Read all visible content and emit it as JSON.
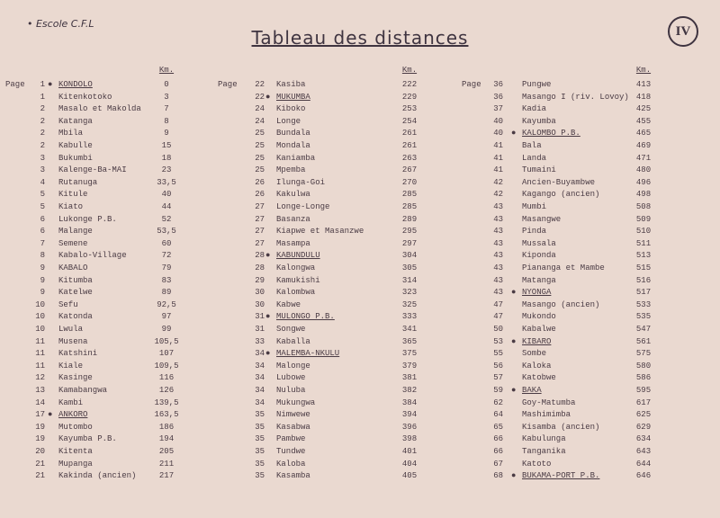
{
  "header": {
    "school": "• Escole C.F.L",
    "title": "Tableau des distances",
    "sheet": "IV"
  },
  "groups": [
    {
      "page_label": "Page",
      "km_label": "Km.",
      "rows": [
        [
          "1",
          "KONDOLO",
          "0",
          true
        ],
        [
          "1",
          "Kitenkotoko",
          "3"
        ],
        [
          "2",
          "Masalo et Makolda",
          "7"
        ],
        [
          "2",
          "Katanga",
          "8"
        ],
        [
          "2",
          "Mbila",
          "9"
        ],
        [
          "2",
          "Kabulle",
          "15"
        ],
        [
          "3",
          "Bukumbi",
          "18"
        ],
        [
          "3",
          "Kalenge-Ba-MAI",
          "23"
        ],
        [
          "4",
          "Rutanuga",
          "33,5"
        ],
        [
          "5",
          "Kitule",
          "40"
        ],
        [
          "5",
          "Kiato",
          "44"
        ],
        [
          "6",
          "Lukonge P.B.",
          "52"
        ],
        [
          "6",
          "Malange",
          "53,5"
        ],
        [
          "7",
          "Semene",
          "60"
        ],
        [
          "8",
          "Kabalo-Village",
          "72"
        ],
        [
          "9",
          "KABALO",
          "79"
        ],
        [
          "9",
          "Kitumba",
          "83"
        ],
        [
          "9",
          "Katelwe",
          "89"
        ],
        [
          "10",
          "Sefu",
          "92,5"
        ],
        [
          "10",
          "Katonda",
          "97"
        ],
        [
          "10",
          "Lwula",
          "99"
        ],
        [
          "11",
          "Musena",
          "105,5"
        ],
        [
          "11",
          "Katshini",
          "107"
        ],
        [
          "11",
          "Kiale",
          "109,5"
        ],
        [
          "12",
          "Kasinge",
          "116"
        ],
        [
          "13",
          "Kamabangwa",
          "126"
        ],
        [
          "14",
          "Kambi",
          "139,5"
        ],
        [
          "17",
          "ANKORO",
          "163,5",
          true
        ],
        [
          "19",
          "Mutombo",
          "186"
        ],
        [
          "19",
          "Kayumba P.B.",
          "194"
        ],
        [
          "20",
          "Kitenta",
          "205"
        ],
        [
          "21",
          "Mupanga",
          "211"
        ],
        [
          "21",
          "Kakinda (ancien)",
          "217"
        ]
      ]
    },
    {
      "page_label": "Page",
      "km_label": "Km.",
      "rows": [
        [
          "22",
          "Kasiba",
          "222"
        ],
        [
          "22",
          "MUKUMBA",
          "229",
          true
        ],
        [
          "24",
          "Kiboko",
          "253"
        ],
        [
          "24",
          "Longe",
          "254"
        ],
        [
          "25",
          "Bundala",
          "261"
        ],
        [
          "25",
          "Mondala",
          "261"
        ],
        [
          "25",
          "Kaniamba",
          "263"
        ],
        [
          "25",
          "Mpemba",
          "267"
        ],
        [
          "26",
          "Ilunga-Goi",
          "270"
        ],
        [
          "26",
          "Kakulwa",
          "285"
        ],
        [
          "27",
          "Longe-Longe",
          "285"
        ],
        [
          "27",
          "Basanza",
          "289"
        ],
        [
          "27",
          "Kiapwe et Masanzwe",
          "295"
        ],
        [
          "27",
          "Masampa",
          "297"
        ],
        [
          "28",
          "KABUNDULU",
          "304",
          true
        ],
        [
          "28",
          "Kalongwa",
          "305"
        ],
        [
          "29",
          "Kamukishi",
          "314"
        ],
        [
          "30",
          "Kalombwa",
          "323"
        ],
        [
          "30",
          "Kabwe",
          "325"
        ],
        [
          "31",
          "MULONGO P.B.",
          "333",
          true
        ],
        [
          "31",
          "Songwe",
          "341"
        ],
        [
          "33",
          "Kaballa",
          "365"
        ],
        [
          "34",
          "MALEMBA-NKULU",
          "375",
          true
        ],
        [
          "34",
          "Malonge",
          "379"
        ],
        [
          "34",
          "Lubowe",
          "381"
        ],
        [
          "34",
          "Nuluba",
          "382"
        ],
        [
          "34",
          "Mukungwa",
          "384"
        ],
        [
          "35",
          "Nimwewe",
          "394"
        ],
        [
          "35",
          "Kasabwa",
          "396"
        ],
        [
          "35",
          "Pambwe",
          "398"
        ],
        [
          "35",
          "Tundwe",
          "401"
        ],
        [
          "35",
          "Kaloba",
          "404"
        ],
        [
          "35",
          "Kasamba",
          "405"
        ]
      ]
    },
    {
      "page_label": "Page",
      "km_label": "Km.",
      "rows": [
        [
          "36",
          "Pungwe",
          "413"
        ],
        [
          "36",
          "Masango I (riv. Lovoy)",
          "418"
        ],
        [
          "37",
          "Kadia",
          "425"
        ],
        [
          "40",
          "Kayumba",
          "455"
        ],
        [
          "40",
          "KALOMBO P.B.",
          "465",
          true
        ],
        [
          "41",
          "Bala",
          "469"
        ],
        [
          "41",
          "Landa",
          "471"
        ],
        [
          "41",
          "Tumaini",
          "480"
        ],
        [
          "42",
          "Ancien-Buyambwe",
          "496"
        ],
        [
          "42",
          "Kagango (ancien)",
          "498"
        ],
        [
          "43",
          "Mumbi",
          "508"
        ],
        [
          "43",
          "Masangwe",
          "509"
        ],
        [
          "43",
          "Pinda",
          "510"
        ],
        [
          "43",
          "Mussala",
          "511"
        ],
        [
          "43",
          "Kiponda",
          "513"
        ],
        [
          "43",
          "Piananga et Mambe",
          "515"
        ],
        [
          "43",
          "Matanga",
          "516"
        ],
        [
          "43",
          "NYONGA",
          "517",
          true
        ],
        [
          "47",
          "Masango (ancien)",
          "533"
        ],
        [
          "47",
          "Mukondo",
          "535"
        ],
        [
          "50",
          "Kabalwe",
          "547"
        ],
        [
          "53",
          "KIBARO",
          "561",
          true
        ],
        [
          "55",
          "Sombe",
          "575"
        ],
        [
          "56",
          "Kaloka",
          "580"
        ],
        [
          "57",
          "Katobwe",
          "586"
        ],
        [
          "59",
          "BAKA",
          "595",
          true
        ],
        [
          "62",
          "Goy-Matumba",
          "617"
        ],
        [
          "64",
          "Mashimimba",
          "625"
        ],
        [
          "65",
          "Kisamba (ancien)",
          "629"
        ],
        [
          "66",
          "Kabulunga",
          "634"
        ],
        [
          "66",
          "Tanganika",
          "643"
        ],
        [
          "67",
          "Katoto",
          "644"
        ],
        [
          "68",
          "BUKAMA-PORT P.B.",
          "646",
          true
        ]
      ]
    }
  ]
}
